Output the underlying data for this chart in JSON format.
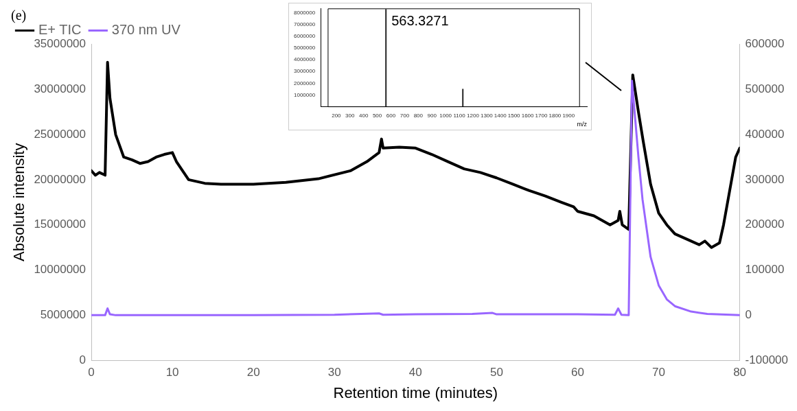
{
  "chart_data": [
    {
      "type": "line",
      "xlabel": "Retention time (minutes)",
      "ylabel": "Absolute intensity",
      "annotations": [
        "(e)"
      ],
      "legend": "top left",
      "grid": false,
      "marker": "none",
      "xlim": [
        0,
        80
      ],
      "xticks": [
        0,
        10,
        20,
        30,
        40,
        50,
        60,
        70,
        80
      ],
      "ylim": [
        0,
        35000000
      ],
      "yticks": [
        0,
        5000000,
        10000000,
        15000000,
        20000000,
        25000000,
        30000000,
        35000000
      ],
      "y2lim": [
        -100000,
        600000
      ],
      "y2ticks": [
        -100000,
        0,
        100000,
        200000,
        300000,
        400000,
        500000,
        600000
      ],
      "series": [
        {
          "name": "E+ TIC",
          "color": "#000000",
          "x": [
            0,
            0.5,
            1,
            1.7,
            2.0,
            2.3,
            3,
            4,
            5,
            6,
            7,
            8,
            9,
            10,
            10.5,
            12,
            14,
            16,
            20,
            24,
            28,
            32,
            34,
            35.5,
            35.8,
            36,
            38,
            40,
            42,
            44,
            46,
            48,
            50,
            52,
            54,
            56,
            58,
            59.5,
            60,
            62,
            64,
            65,
            65.2,
            65.5,
            66.3,
            66.8,
            67.5,
            68.1,
            69,
            70,
            71,
            72,
            74,
            75,
            75.7,
            76.5,
            77.5,
            78,
            79,
            79.5,
            80
          ],
          "values": [
            21000000,
            20500000,
            20800000,
            20500000,
            33000000,
            29000000,
            25000000,
            22500000,
            22200000,
            21800000,
            22000000,
            22500000,
            22800000,
            23000000,
            22000000,
            20000000,
            19600000,
            19500000,
            19500000,
            19700000,
            20100000,
            21000000,
            22000000,
            23000000,
            24500000,
            23500000,
            23600000,
            23500000,
            22800000,
            22000000,
            21200000,
            20800000,
            20200000,
            19500000,
            18800000,
            18200000,
            17500000,
            17000000,
            16500000,
            16000000,
            15000000,
            15500000,
            16500000,
            15000000,
            14500000,
            31600000,
            27500000,
            24200000,
            19500000,
            16300000,
            15000000,
            14000000,
            13200000,
            12800000,
            13200000,
            12500000,
            13000000,
            15000000,
            20000000,
            22500000,
            23500000
          ]
        },
        {
          "name": "370 nm UV",
          "color": "#9966ff",
          "axis": "y2",
          "x": [
            0,
            1.7,
            2.0,
            2.3,
            3,
            10,
            20,
            30,
            35.5,
            36,
            40,
            47,
            49.5,
            50,
            55,
            60,
            64.6,
            65,
            65.4,
            66.3,
            66.7,
            67.5,
            68,
            69,
            70,
            71,
            72,
            74,
            76,
            80
          ],
          "values": [
            0,
            0,
            15000,
            2000,
            0,
            0,
            0,
            1000,
            4000,
            1000,
            2000,
            3000,
            5000,
            2000,
            2000,
            2000,
            1000,
            15000,
            1000,
            0,
            519000,
            350000,
            257000,
            129000,
            66000,
            35000,
            20000,
            8000,
            3000,
            0
          ]
        }
      ]
    },
    {
      "type": "bar",
      "xlabel": "m/z",
      "annotations": [
        {
          "text": "563.3271",
          "x": 563.3271,
          "y": 8300000
        }
      ],
      "legend": false,
      "grid": false,
      "xlim": [
        140,
        1980
      ],
      "xticks": [
        200,
        300,
        400,
        500,
        600,
        700,
        800,
        900,
        1000,
        1100,
        1200,
        1300,
        1400,
        1500,
        1600,
        1700,
        1800,
        1900
      ],
      "ylim": [
        0,
        8350000
      ],
      "yticks": [
        1000000,
        2000000,
        3000000,
        4000000,
        5000000,
        6000000,
        7000000,
        8000000
      ],
      "series": [
        {
          "color": "#333333",
          "x": [
            563.3271,
            1126
          ],
          "values": [
            8300000,
            1500000
          ]
        }
      ]
    }
  ]
}
